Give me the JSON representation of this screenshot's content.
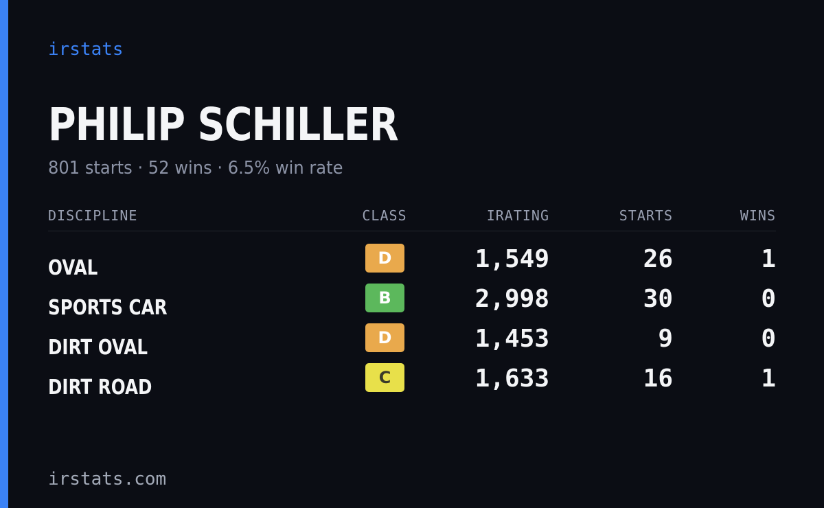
{
  "brand": "irstats",
  "player": {
    "name": "PHILIP SCHILLER",
    "summary": "801 starts · 52 wins · 6.5% win rate"
  },
  "table": {
    "headers": {
      "discipline": "DISCIPLINE",
      "class": "CLASS",
      "irating": "IRATING",
      "starts": "STARTS",
      "wins": "WINS"
    },
    "rows": [
      {
        "discipline": "OVAL",
        "class": "D",
        "class_color": "#e9a94c",
        "class_text_color": "#ffffff",
        "irating": "1,549",
        "starts": "26",
        "wins": "1"
      },
      {
        "discipline": "SPORTS CAR",
        "class": "B",
        "class_color": "#5cb85c",
        "class_text_color": "#ffffff",
        "irating": "2,998",
        "starts": "30",
        "wins": "0"
      },
      {
        "discipline": "DIRT OVAL",
        "class": "D",
        "class_color": "#e9a94c",
        "class_text_color": "#ffffff",
        "irating": "1,453",
        "starts": "9",
        "wins": "0"
      },
      {
        "discipline": "DIRT ROAD",
        "class": "C",
        "class_color": "#e8e04a",
        "class_text_color": "#3a3a2a",
        "irating": "1,633",
        "starts": "16",
        "wins": "1"
      }
    ]
  },
  "footer": {
    "url": "irstats.com"
  },
  "colors": {
    "background": "#0b0d14",
    "accent": "#3b82f6"
  }
}
